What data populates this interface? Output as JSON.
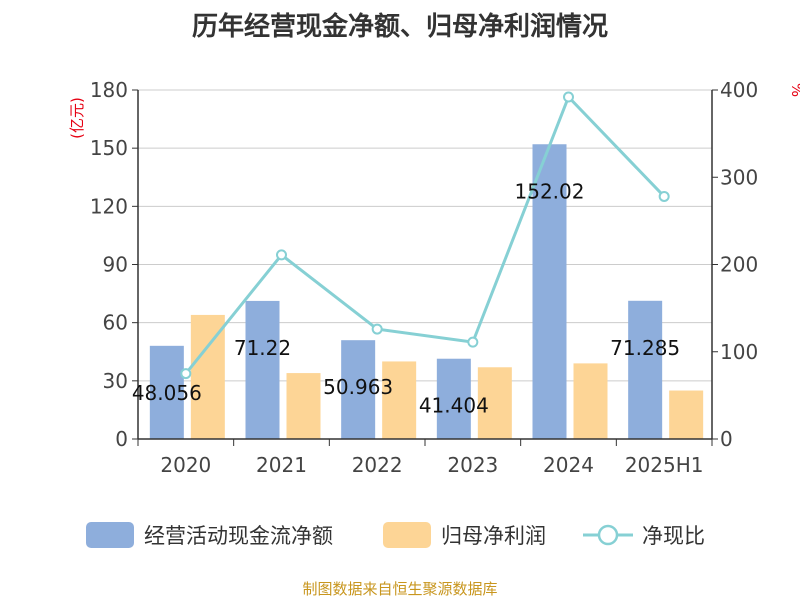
{
  "title": "历年经营现金净额、归母净利润情况",
  "source": "制图数据来自恒生聚源数据库",
  "colors": {
    "op_cash": "#8eaedc",
    "net_profit": "#fdd596",
    "ratio": "#86d0d4",
    "axis": "#333333",
    "grid": "#cccccc",
    "unit": "#e60012"
  },
  "chart_data": {
    "type": "bar",
    "categories": [
      "2020",
      "2021",
      "2022",
      "2023",
      "2024",
      "2025H1"
    ],
    "y_left": {
      "unit": "(亿元)",
      "ylim": [
        0,
        180
      ],
      "ticks": [
        0,
        30,
        60,
        90,
        120,
        150,
        180
      ]
    },
    "y_right": {
      "unit": "%",
      "ylim": [
        0,
        400
      ],
      "ticks": [
        0,
        100,
        200,
        300,
        400
      ]
    },
    "grid": true,
    "legend_position": "bottom",
    "series": [
      {
        "name": "经营活动现金流净额",
        "type": "bar",
        "axis": "left",
        "values": [
          48.056,
          71.22,
          50.963,
          41.404,
          152.02,
          71.285
        ],
        "labels": [
          "48.056",
          "71.22",
          "50.963",
          "41.404",
          "152.02",
          "71.285"
        ]
      },
      {
        "name": "归母净利润",
        "type": "bar",
        "axis": "left",
        "values": [
          64,
          34,
          40,
          37,
          39,
          25
        ]
      },
      {
        "name": "净现比",
        "type": "line",
        "axis": "right",
        "values": [
          75,
          211,
          126,
          111,
          392,
          278
        ]
      }
    ]
  }
}
